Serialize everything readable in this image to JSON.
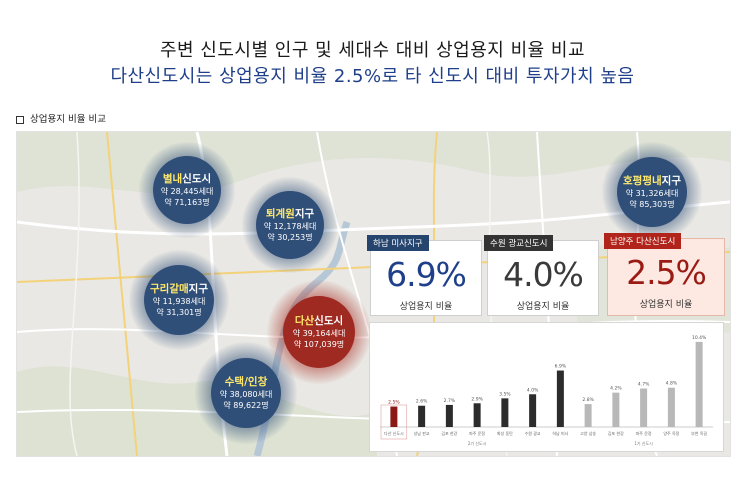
{
  "title": "주변 신도시별 인구 및 세대수 대비 상업용지 비율 비교",
  "subtitle": "다산신도시는 상업용지 비율 2.5%로 타 신도시 대비 투자가치 높음",
  "section_label": "상업용지 비율 비교",
  "bubbles": [
    {
      "id": "byeollae",
      "name_hl": "별내",
      "name_rest": "신도시",
      "households": "약 28,445세대",
      "population": "약 71,163명",
      "color": "#2f4e78"
    },
    {
      "id": "toegyewon",
      "name_hl": "퇴계원",
      "name_rest": "지구",
      "households": "약 12,178세대",
      "population": "약 30,253명",
      "color": "#2f4e78"
    },
    {
      "id": "guri",
      "name_hl": "구리갈매",
      "name_rest": "지구",
      "households": "약 11,938세대",
      "population": "약 31,301명",
      "color": "#2f4e78"
    },
    {
      "id": "dasan",
      "name_hl": "다산",
      "name_rest": "신도시",
      "households": "약 39,164세대",
      "population": "약 107,039명",
      "color": "#9e2a22"
    },
    {
      "id": "sutaek",
      "name_hl": "수택/인창",
      "name_rest": "",
      "households": "약 38,080세대",
      "population": "약 89,622명",
      "color": "#2f4e78"
    },
    {
      "id": "hopyeong",
      "name_hl": "호평평내",
      "name_rest": "지구",
      "households": "약 31,326세대",
      "population": "약 85,303명",
      "color": "#2f4e78"
    }
  ],
  "cards": [
    {
      "id": "hanam",
      "tag": "하남 미사지구",
      "value": "6.9%",
      "label": "상업용지 비율",
      "tag_color": "#26456e",
      "value_color": "#1f3f8a",
      "bg": "#ffffff"
    },
    {
      "id": "suwon",
      "tag": "수원 광교신도시",
      "value": "4.0%",
      "label": "상업용지 비율",
      "tag_color": "#333333",
      "value_color": "#3a3a3a",
      "bg": "#ffffff"
    },
    {
      "id": "namyangju",
      "tag": "남양주 다산신도시",
      "value": "2.5%",
      "label": "상업용지 비율",
      "tag_color": "#b0241c",
      "value_color": "#9a1a14",
      "bg": "#fde9e1"
    }
  ],
  "chart_data": {
    "type": "bar",
    "categories": [
      "다산 신도시",
      "성남 판교",
      "김포 한강",
      "파주 운정",
      "화성 동탄",
      "수원 광교",
      "하남 미사",
      "고양 삼송",
      "김포 한강",
      "파주 운정",
      "양주 옥정",
      "부천 옥길"
    ],
    "values": [
      2.5,
      2.6,
      2.7,
      2.9,
      3.5,
      4.0,
      6.9,
      2.8,
      4.2,
      4.7,
      4.8,
      10.4
    ],
    "value_labels": [
      "2.5%",
      "2.6%",
      "2.7%",
      "2.9%",
      "3.5%",
      "4.0%",
      "6.9%",
      "2.8%",
      "4.2%",
      "4.7%",
      "4.8%",
      "10.4%"
    ],
    "bar_colors": [
      "#8b1a17",
      "#2c2c2c",
      "#2c2c2c",
      "#2c2c2c",
      "#2c2c2c",
      "#2c2c2c",
      "#2c2c2c",
      "#b8b8b8",
      "#b8b8b8",
      "#b8b8b8",
      "#b8b8b8",
      "#b8b8b8"
    ],
    "group_labels": [
      "2기 신도시",
      "1기 신도시"
    ],
    "ylim": [
      0,
      11
    ]
  }
}
